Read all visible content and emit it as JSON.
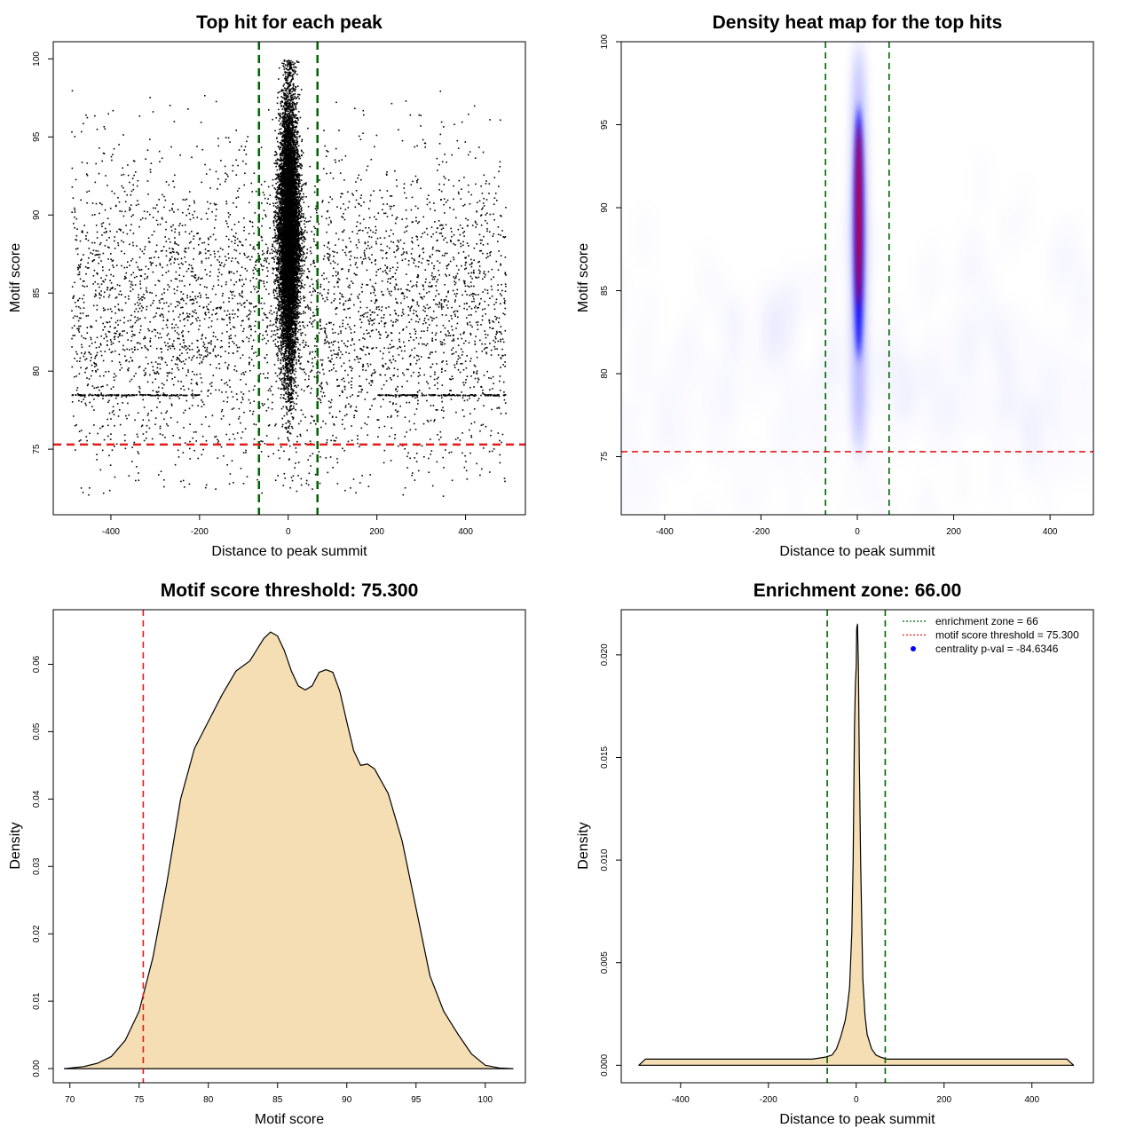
{
  "chart_data": [
    {
      "type": "scatter",
      "title": "Top hit for each peak",
      "xlabel": "Distance to peak summit",
      "ylabel": "Motif score",
      "xlim": [
        -530,
        535
      ],
      "ylim": [
        70.8,
        101.1
      ],
      "xticks": [
        "-400",
        "-200",
        "0",
        "200",
        "400"
      ],
      "xtick_values": [
        -400,
        -200,
        0,
        200,
        400
      ],
      "yticks": [
        "75",
        "80",
        "85",
        "90",
        "95",
        "100"
      ],
      "ytick_values": [
        75,
        80,
        85,
        90,
        95,
        100
      ],
      "grid": false,
      "vlines": [
        {
          "x": -66,
          "color": "#006400",
          "style": "dashed"
        },
        {
          "x": 66,
          "color": "#006400",
          "style": "dashed"
        }
      ],
      "hlines": [
        {
          "y": 75.3,
          "color": "#e31a1c",
          "style": "dashed"
        }
      ],
      "background_points": {
        "x_range": [
          -490,
          490
        ],
        "y_range": [
          72,
          98
        ],
        "approx_count": 4200
      },
      "central_cluster": {
        "x_center": 0,
        "x_spread": 13,
        "y_range": [
          73,
          100
        ],
        "y_peak": 89,
        "approx_count": 9000
      },
      "horizontal_band": {
        "y": 78.5,
        "x_ranges": [
          [
            -490,
            -200
          ],
          [
            200,
            490
          ]
        ]
      }
    },
    {
      "type": "heatmap",
      "title": "Density heat map for the top hits",
      "xlabel": "Distance to peak summit",
      "ylabel": "Motif score",
      "xlim": [
        -490,
        490
      ],
      "ylim": [
        71.5,
        100
      ],
      "xticks": [
        "-400",
        "-200",
        "0",
        "200",
        "400"
      ],
      "xtick_values": [
        -400,
        -200,
        0,
        200,
        400
      ],
      "yticks": [
        "75",
        "80",
        "85",
        "90",
        "95",
        "100"
      ],
      "ytick_values": [
        75,
        80,
        85,
        90,
        95,
        100
      ],
      "colors": [
        "#ffffff",
        "#0000ff",
        "#ff0000"
      ],
      "grid": false,
      "vlines": [
        {
          "x": -66,
          "color": "#006400",
          "style": "dashed"
        },
        {
          "x": 66,
          "color": "#006400",
          "style": "dashed"
        }
      ],
      "hlines": [
        {
          "y": 75.3,
          "color": "#e31a1c",
          "style": "dashed"
        }
      ],
      "hotspot": {
        "x_center": 3,
        "x_spread": 7,
        "y_range": [
          75,
          100
        ],
        "y_core": [
          82,
          95
        ]
      }
    },
    {
      "type": "area",
      "title": "Motif score threshold: 75.300",
      "xlabel": "Motif score",
      "ylabel": "Density",
      "xlim": [
        68.8,
        102.9
      ],
      "ylim": [
        -0.0021,
        0.0681
      ],
      "xticks": [
        "70",
        "75",
        "80",
        "85",
        "90",
        "95",
        "100"
      ],
      "xtick_values": [
        70,
        75,
        80,
        85,
        90,
        95,
        100
      ],
      "yticks": [
        "0.00",
        "0.01",
        "0.02",
        "0.03",
        "0.04",
        "0.05",
        "0.06"
      ],
      "ytick_values": [
        0,
        0.01,
        0.02,
        0.03,
        0.04,
        0.05,
        0.06
      ],
      "fill": "#f5deb3",
      "grid": false,
      "vlines": [
        {
          "x": 75.3,
          "color": "#e31a1c",
          "style": "dashed"
        }
      ],
      "x": [
        69.6,
        71,
        72,
        73,
        74,
        75,
        76,
        77,
        78,
        79,
        80,
        81,
        82,
        83,
        84,
        84.5,
        85,
        85.5,
        86,
        86.5,
        87,
        87.5,
        88,
        88.5,
        89,
        89.5,
        90,
        90.5,
        91,
        91.5,
        92,
        93,
        94,
        95,
        96,
        97,
        98,
        99,
        100,
        101,
        102
      ],
      "y": [
        0.0,
        0.0003,
        0.0008,
        0.0018,
        0.0042,
        0.0085,
        0.0165,
        0.0275,
        0.04,
        0.0475,
        0.0515,
        0.0555,
        0.059,
        0.0605,
        0.0638,
        0.0648,
        0.0642,
        0.062,
        0.059,
        0.0568,
        0.0562,
        0.0568,
        0.0588,
        0.0592,
        0.0588,
        0.056,
        0.0515,
        0.0472,
        0.045,
        0.0452,
        0.0445,
        0.0408,
        0.0338,
        0.0238,
        0.0138,
        0.0085,
        0.0052,
        0.0022,
        0.0005,
        0.0001,
        0.0
      ]
    },
    {
      "type": "area",
      "title": "Enrichment zone: 66.00",
      "xlabel": "Distance to peak summit",
      "ylabel": "Density",
      "xlim": [
        -535,
        540
      ],
      "ylim": [
        -0.00085,
        0.0222
      ],
      "xticks": [
        "-400",
        "-200",
        "0",
        "200",
        "400"
      ],
      "xtick_values": [
        -400,
        -200,
        0,
        200,
        400
      ],
      "yticks": [
        "0.000",
        "0.005",
        "0.010",
        "0.015",
        "0.020"
      ],
      "ytick_values": [
        0,
        0.005,
        0.01,
        0.015,
        0.02
      ],
      "fill": "#f5deb3",
      "grid": false,
      "vlines": [
        {
          "x": -66,
          "color": "#006400",
          "style": "dashed"
        },
        {
          "x": 66,
          "color": "#006400",
          "style": "dashed"
        }
      ],
      "x": [
        -495,
        -480,
        -460,
        -400,
        -300,
        -200,
        -100,
        -70,
        -55,
        -45,
        -35,
        -25,
        -20,
        -15,
        -10,
        -7,
        -4,
        -2,
        0,
        1,
        3,
        5,
        7,
        10,
        15,
        20,
        25,
        35,
        45,
        55,
        70,
        100,
        200,
        300,
        400,
        480,
        495
      ],
      "y": [
        0.0,
        0.0003,
        0.0003,
        0.0003,
        0.0003,
        0.0003,
        0.0003,
        0.0004,
        0.0005,
        0.0008,
        0.0014,
        0.0022,
        0.0029,
        0.0038,
        0.0065,
        0.01,
        0.0165,
        0.0185,
        0.0195,
        0.0213,
        0.0215,
        0.0195,
        0.015,
        0.01,
        0.0042,
        0.0024,
        0.0015,
        0.0008,
        0.0005,
        0.0004,
        0.0003,
        0.0003,
        0.0003,
        0.0003,
        0.0003,
        0.0003,
        0.0
      ],
      "legend": {
        "placement": "top-right",
        "entries": [
          {
            "label": "enrichment zone = 66",
            "color": "#006400",
            "marker": "dotted-line"
          },
          {
            "label": "motif score threshold = 75.300",
            "color": "#e31a1c",
            "marker": "dotted-line"
          },
          {
            "label": "centrality p-val = -84.6346",
            "color": "#0000ff",
            "marker": "dot"
          }
        ]
      }
    }
  ]
}
